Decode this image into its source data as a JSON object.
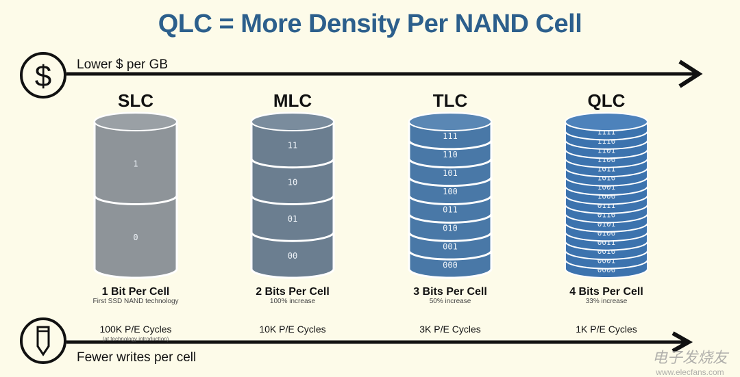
{
  "title": "QLC = More Density Per NAND Cell",
  "top_axis": {
    "label": "Lower $ per GB",
    "icon": "dollar-icon"
  },
  "bottom_axis": {
    "label": "Fewer writes per cell",
    "icon": "pencil-icon"
  },
  "columns": [
    {
      "name": "SLC",
      "bits_label": "1 Bit Per Cell",
      "subtitle": "First SSD NAND technology",
      "pe_cycles": "100K P/E Cycles",
      "pe_note": "(at technology introduction)",
      "levels": [
        "1",
        "0"
      ],
      "color": "#8e9499",
      "cap_color": "#9aa0a5"
    },
    {
      "name": "MLC",
      "bits_label": "2 Bits Per Cell",
      "subtitle": "100% increase",
      "pe_cycles": "10K P/E Cycles",
      "levels": [
        "11",
        "10",
        "01",
        "00"
      ],
      "color": "#6b7e90",
      "cap_color": "#7a8c9d"
    },
    {
      "name": "TLC",
      "bits_label": "3 Bits Per Cell",
      "subtitle": "50% increase",
      "pe_cycles": "3K P/E Cycles",
      "levels": [
        "111",
        "110",
        "101",
        "100",
        "011",
        "010",
        "001",
        "000"
      ],
      "color": "#4978a7",
      "cap_color": "#5a87b4"
    },
    {
      "name": "QLC",
      "bits_label": "4 Bits Per Cell",
      "subtitle": "33% increase",
      "pe_cycles": "1K P/E Cycles",
      "levels": [
        "1111",
        "1110",
        "1101",
        "1100",
        "1011",
        "1010",
        "1001",
        "1000",
        "0111",
        "0110",
        "0101",
        "0100",
        "0011",
        "0010",
        "0001",
        "0000"
      ],
      "color": "#3c73ae",
      "cap_color": "#4d82bb"
    }
  ],
  "watermark": {
    "name": "电子发烧友",
    "url": "www.elecfans.com"
  }
}
